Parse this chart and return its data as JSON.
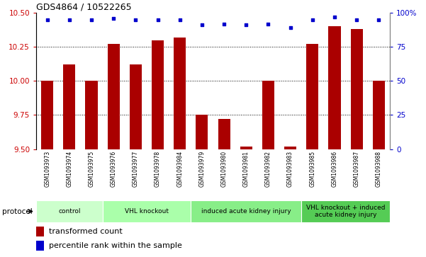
{
  "title": "GDS4864 / 10522265",
  "samples": [
    "GSM1093973",
    "GSM1093974",
    "GSM1093975",
    "GSM1093976",
    "GSM1093977",
    "GSM1093978",
    "GSM1093984",
    "GSM1093979",
    "GSM1093980",
    "GSM1093981",
    "GSM1093982",
    "GSM1093983",
    "GSM1093985",
    "GSM1093986",
    "GSM1093987",
    "GSM1093988"
  ],
  "bar_values": [
    10.0,
    10.12,
    10.0,
    10.27,
    10.12,
    10.3,
    10.32,
    9.75,
    9.72,
    9.52,
    10.0,
    9.52,
    10.27,
    10.4,
    10.38,
    10.0
  ],
  "dot_values": [
    95,
    95,
    95,
    96,
    95,
    95,
    95,
    91,
    92,
    91,
    92,
    89,
    95,
    97,
    95,
    95
  ],
  "bar_color": "#aa0000",
  "dot_color": "#0000cc",
  "ylim_left": [
    9.5,
    10.5
  ],
  "ylim_right": [
    0,
    100
  ],
  "yticks_left": [
    9.5,
    9.75,
    10.0,
    10.25,
    10.5
  ],
  "yticks_right": [
    0,
    25,
    50,
    75,
    100
  ],
  "ytick_labels_right": [
    "0",
    "25",
    "50",
    "75",
    "100%"
  ],
  "groups": [
    {
      "label": "control",
      "start": 0,
      "end": 3,
      "color": "#ccffcc"
    },
    {
      "label": "VHL knockout",
      "start": 3,
      "end": 7,
      "color": "#aaffaa"
    },
    {
      "label": "induced acute kidney injury",
      "start": 7,
      "end": 12,
      "color": "#88ee88"
    },
    {
      "label": "VHL knockout + induced\nacute kidney injury",
      "start": 12,
      "end": 16,
      "color": "#55cc55"
    }
  ],
  "legend_items": [
    {
      "label": "transformed count",
      "color": "#aa0000"
    },
    {
      "label": "percentile rank within the sample",
      "color": "#0000cc"
    }
  ],
  "protocol_label": "protocol",
  "tick_label_color_left": "#cc0000",
  "tick_label_color_right": "#0000cc",
  "dotgrid_lines": [
    9.75,
    10.0,
    10.25
  ],
  "sample_bg_color": "#cccccc"
}
